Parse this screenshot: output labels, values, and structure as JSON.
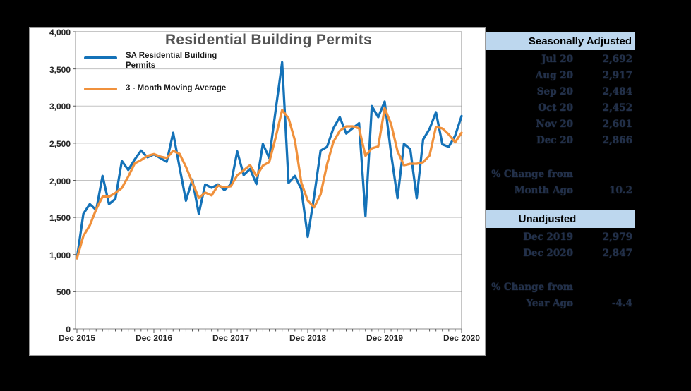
{
  "colors": {
    "page_background": "#000000",
    "panel_background": "#ffffff",
    "table_header_bg": "#bdd7ee",
    "gridline": "#c3c3c3",
    "plot_border": "#8e8e8e",
    "tick": "#5a5a5a",
    "series_blue": "#1472b8",
    "series_orange": "#f0913c"
  },
  "chart_data": {
    "type": "line",
    "title": "Residential Building Permits",
    "x_start": "Dec 2015",
    "x_end": "Dec 2020",
    "frequency": "monthly",
    "x_tick_labels": [
      "Dec 2015",
      "Dec 2016",
      "Dec 2017",
      "Dec 2018",
      "Dec 2019",
      "Dec 2020"
    ],
    "months_per_major_tick": 12,
    "ylim": [
      0,
      4000
    ],
    "y_tick_step": 500,
    "y_tick_labels": [
      "0",
      "500",
      "1,000",
      "1,500",
      "2,000",
      "2,500",
      "3,000",
      "3,500",
      "4,000"
    ],
    "grid": true,
    "legend_position": "top-left-inside",
    "series": [
      {
        "name": "SA Residential Building Permits",
        "color": "#1472b8",
        "values": [
          950,
          1550,
          1680,
          1600,
          2060,
          1680,
          1750,
          2260,
          2140,
          2280,
          2400,
          2310,
          2350,
          2300,
          2250,
          2640,
          2180,
          1725,
          2010,
          1550,
          1945,
          1900,
          1945,
          1870,
          1945,
          2390,
          2070,
          2155,
          1950,
          2490,
          2300,
          2950,
          3590,
          1965,
          2060,
          1880,
          1240,
          1790,
          2400,
          2450,
          2700,
          2850,
          2630,
          2700,
          2770,
          1520,
          3000,
          2850,
          3060,
          2360,
          1760,
          2490,
          2420,
          1760,
          2550,
          2692,
          2917,
          2484,
          2452,
          2601,
          2866
        ]
      },
      {
        "name": "3 - Month Moving Average",
        "color": "#f0913c",
        "values": [
          950,
          1250,
          1393,
          1610,
          1780,
          1780,
          1830,
          1897,
          2050,
          2227,
          2273,
          2330,
          2353,
          2320,
          2300,
          2397,
          2357,
          2182,
          1972,
          1762,
          1835,
          1798,
          1930,
          1905,
          1920,
          2068,
          2135,
          2205,
          2058,
          2198,
          2247,
          2580,
          2947,
          2835,
          2538,
          1968,
          1727,
          1637,
          1810,
          2213,
          2517,
          2667,
          2727,
          2727,
          2700,
          2330,
          2430,
          2457,
          2970,
          2757,
          2393,
          2203,
          2223,
          2223,
          2243,
          2334,
          2720,
          2698,
          2618,
          2512,
          2640
        ]
      }
    ]
  },
  "side_panel": {
    "sections": [
      {
        "header": "Seasonally Adjusted",
        "rows": [
          {
            "label": "Jul 20",
            "value": "2,692"
          },
          {
            "label": "Aug 20",
            "value": "2,917"
          },
          {
            "label": "Sep 20",
            "value": "2,484"
          },
          {
            "label": "Oct 20",
            "value": "2,452"
          },
          {
            "label": "Nov 20",
            "value": "2,601"
          },
          {
            "label": "Dec 20",
            "value": "2,866"
          }
        ],
        "change": {
          "label_line1": "% Change from",
          "label_line2": "Month Ago",
          "value": "10.2"
        }
      },
      {
        "header": "Unadjusted",
        "rows": [
          {
            "label": "Dec 2019",
            "value": "2,979"
          },
          {
            "label": "Dec 2020",
            "value": "2,847"
          }
        ],
        "change": {
          "label_line1": "% Change from",
          "label_line2": "Year Ago",
          "value": "-4.4"
        }
      }
    ]
  }
}
